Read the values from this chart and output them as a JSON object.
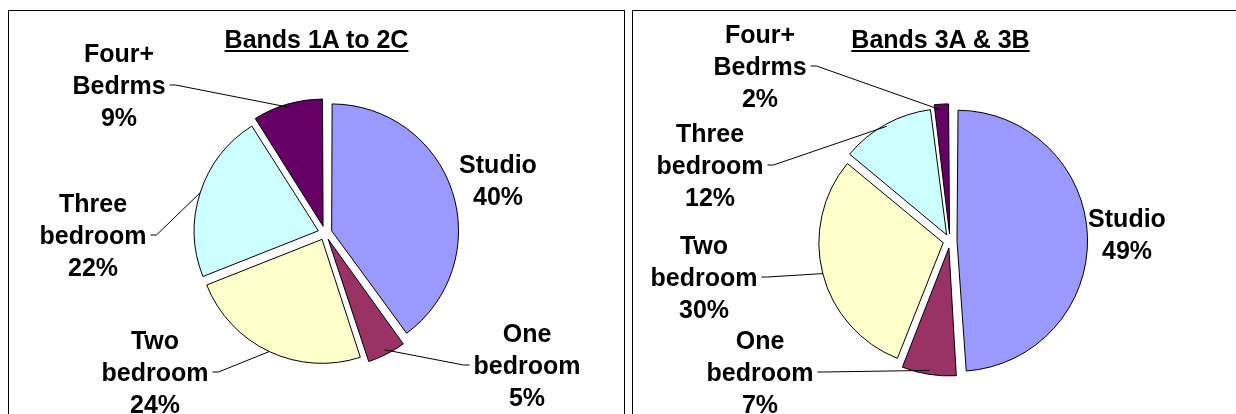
{
  "chart_data": [
    {
      "type": "pie",
      "title": "Bands 1A to 2C",
      "categories": [
        "Studio",
        "One bedroom",
        "Two bedroom",
        "Three bedroom",
        "Four+ Bedrms"
      ],
      "values": [
        40,
        5,
        24,
        22,
        9
      ],
      "colors": [
        "#9999ff",
        "#993366",
        "#ffffcc",
        "#ccffff",
        "#660066"
      ],
      "value_labels": [
        "40%",
        "5%",
        "24%",
        "22%",
        "9%"
      ]
    },
    {
      "type": "pie",
      "title": "Bands 3A & 3B",
      "categories": [
        "Studio",
        "One bedroom",
        "Two bedroom",
        "Three bedroom",
        "Four+ Bedrms"
      ],
      "values": [
        49,
        7,
        30,
        12,
        2
      ],
      "colors": [
        "#9999ff",
        "#993366",
        "#ffffcc",
        "#ccffff",
        "#660066"
      ],
      "value_labels": [
        "49%",
        "7%",
        "30%",
        "12%",
        "2%"
      ]
    }
  ]
}
